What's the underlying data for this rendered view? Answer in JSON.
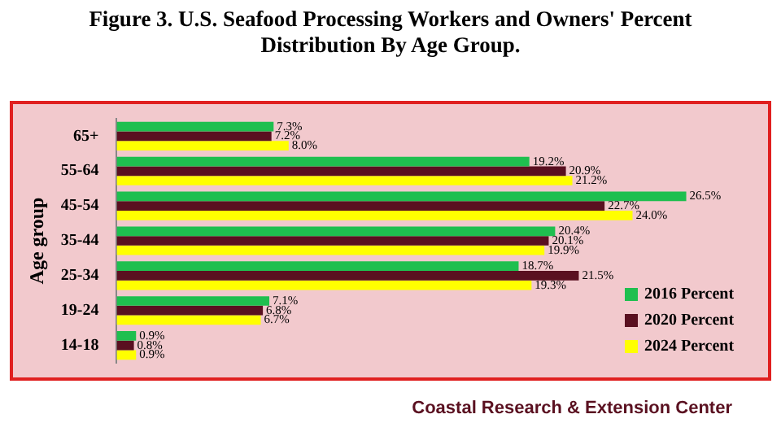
{
  "chart_data": {
    "type": "bar",
    "orientation": "horizontal",
    "title": "Figure 3. U.S. Seafood Processing Workers and Owners' Percent Distribution By Age Group.",
    "ylabel": "Age group",
    "categories": [
      "65+",
      "55-64",
      "45-54",
      "35-44",
      "25-34",
      "19-24",
      "14-18"
    ],
    "series": [
      {
        "name": "2016 Percent",
        "color": "#1fbf4f",
        "values": [
          7.3,
          19.2,
          26.5,
          20.4,
          18.7,
          7.1,
          0.9
        ],
        "value_labels": [
          "7.3%",
          "19.2%",
          "26.5%",
          "20.4%",
          "18.7%",
          "7.1%",
          "0.9%"
        ]
      },
      {
        "name": "2020 Percent",
        "color": "#5a1020",
        "values": [
          7.2,
          20.9,
          22.7,
          20.1,
          21.5,
          6.8,
          0.8
        ],
        "value_labels": [
          "7.2%",
          "20.9%",
          "22.7%",
          "20.1%",
          "21.5%",
          "6.8%",
          "0.8%"
        ]
      },
      {
        "name": "2024 Percent",
        "color": "#ffff00",
        "values": [
          8.0,
          21.2,
          24.0,
          19.9,
          19.3,
          6.7,
          0.9
        ],
        "value_labels": [
          "8.0%",
          "21.2%",
          "24.0%",
          "19.9%",
          "19.3%",
          "6.7%",
          "0.9%"
        ]
      }
    ],
    "tick_labels": "y",
    "legend": "bottom right",
    "annotations": [
      "Coastal Research & Extension Center"
    ]
  }
}
